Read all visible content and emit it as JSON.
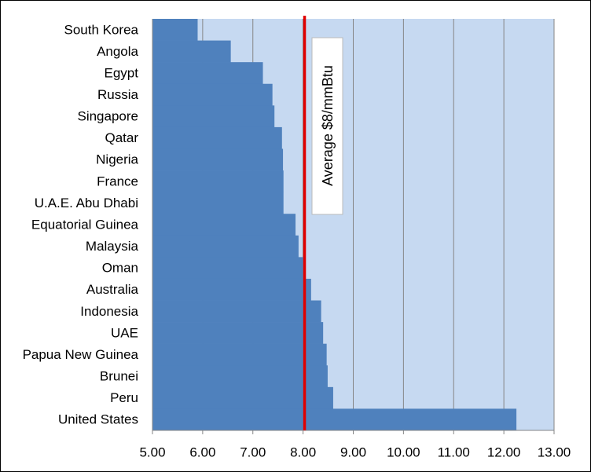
{
  "chart_data": {
    "type": "bar",
    "orientation": "horizontal",
    "categories": [
      "South Korea",
      "Angola",
      "Egypt",
      "Russia",
      "Singapore",
      "Qatar",
      "Nigeria",
      "France",
      "U.A.E. Abu Dhabi",
      "Equatorial Guinea",
      "Malaysia",
      "Oman",
      "Australia",
      "Indonesia",
      "UAE",
      "Papua New Guinea",
      "Brunei",
      "Peru",
      "United States"
    ],
    "values": [
      5.9,
      6.56,
      7.2,
      7.39,
      7.43,
      7.58,
      7.6,
      7.61,
      7.61,
      7.85,
      7.91,
      8.0,
      8.16,
      8.36,
      8.4,
      8.47,
      8.49,
      8.6,
      12.25
    ],
    "color": "#4f81bd",
    "xlim": [
      5,
      13
    ],
    "xticks": [
      {
        "value": 5,
        "label": "5.00"
      },
      {
        "value": 6,
        "label": "6.00"
      },
      {
        "value": 7,
        "label": "7.00"
      },
      {
        "value": 8,
        "label": "8.00"
      },
      {
        "value": 9,
        "label": "9.00"
      },
      {
        "value": 10,
        "label": "10.00"
      },
      {
        "value": 11,
        "label": "11.00"
      },
      {
        "value": 12,
        "label": "12.00"
      },
      {
        "value": 13,
        "label": "13.00"
      }
    ],
    "grid": true,
    "reference_line": {
      "value": 8.03,
      "label": "Average $8/mmBtu",
      "color": "#e00000"
    }
  }
}
